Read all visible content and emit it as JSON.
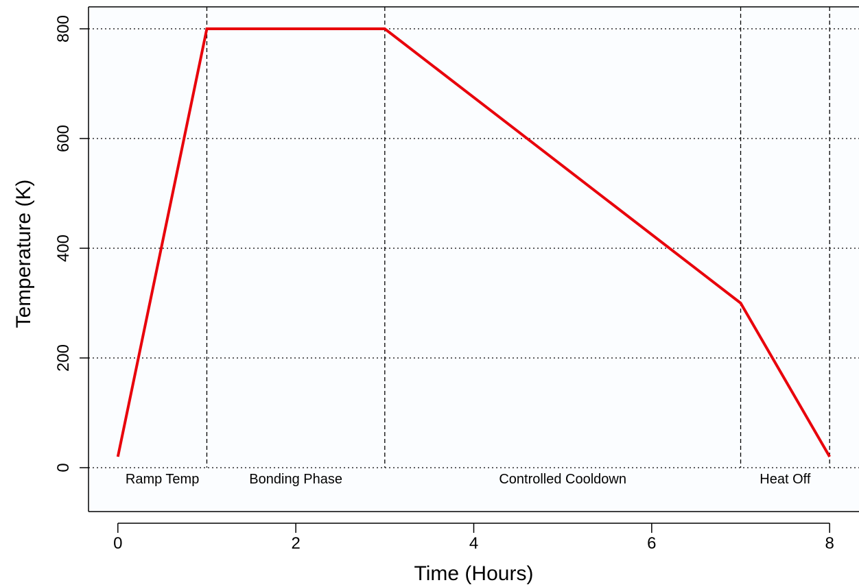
{
  "chart_data": {
    "type": "line",
    "title": "",
    "xlabel": "Time (Hours)",
    "ylabel": "Temperature (K)",
    "xlim": [
      -0.33,
      8.33
    ],
    "ylim": [
      -80,
      840
    ],
    "xticks": [
      0,
      2,
      4,
      6,
      8
    ],
    "yticks": [
      0,
      200,
      400,
      600,
      800
    ],
    "grid": true,
    "series": [
      {
        "color": "#e8000b",
        "x": [
          0,
          1,
          3,
          7,
          8
        ],
        "y": [
          20,
          800,
          800,
          300,
          20
        ]
      }
    ],
    "phase_boundaries": [
      1,
      3,
      7,
      8
    ],
    "annotations": [
      {
        "text": "Ramp Temp",
        "x": 0.5
      },
      {
        "text": "Bonding Phase",
        "x": 2
      },
      {
        "text": "Controlled Cooldown",
        "x": 5
      },
      {
        "text": "Heat Off",
        "x": 7.5
      }
    ]
  }
}
